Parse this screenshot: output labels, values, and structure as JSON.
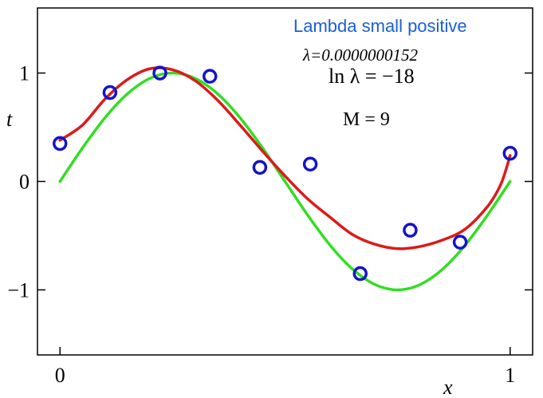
{
  "chart_data": {
    "type": "line",
    "ylabel": "t",
    "xlabel": "x",
    "xlim": [
      -0.05,
      1.05
    ],
    "ylim": [
      -1.6,
      1.6
    ],
    "x_ticks": [
      {
        "value": 0,
        "label": "0"
      },
      {
        "value": 1,
        "label": "1"
      }
    ],
    "y_ticks": [
      {
        "value": 1,
        "label": "1"
      },
      {
        "value": 0,
        "label": "0"
      },
      {
        "value": -1,
        "label": "−1"
      }
    ],
    "annotations": [
      {
        "id": "title",
        "text": "Lambda small positive",
        "color": "#1a5fd6"
      },
      {
        "id": "lambda",
        "text": "λ=0.0000000152"
      },
      {
        "id": "lnlambda",
        "text": "ln λ = −18"
      },
      {
        "id": "m",
        "text": "M = 9"
      }
    ],
    "points": {
      "color": "#1414c8",
      "x": [
        0.0,
        0.111,
        0.222,
        0.333,
        0.444,
        0.556,
        0.667,
        0.778,
        0.889,
        1.0
      ],
      "y": [
        0.35,
        0.82,
        1.0,
        0.97,
        0.13,
        0.16,
        -0.85,
        -0.45,
        -0.56,
        0.26
      ]
    },
    "series": [
      {
        "color": "#33dd22",
        "x": [
          0.0,
          0.05,
          0.1,
          0.15,
          0.2,
          0.25,
          0.3,
          0.35,
          0.4,
          0.45,
          0.5,
          0.55,
          0.6,
          0.65,
          0.7,
          0.75,
          0.8,
          0.85,
          0.9,
          0.95,
          1.0
        ],
        "y": [
          0.0,
          0.309,
          0.588,
          0.809,
          0.951,
          1.0,
          0.951,
          0.809,
          0.588,
          0.309,
          0.0,
          -0.309,
          -0.588,
          -0.809,
          -0.951,
          -1.0,
          -0.951,
          -0.809,
          -0.588,
          -0.309,
          0.0
        ]
      },
      {
        "color": "#dd1a1a",
        "x": [
          0.0,
          0.05,
          0.1,
          0.15,
          0.2,
          0.25,
          0.3,
          0.35,
          0.4,
          0.45,
          0.5,
          0.55,
          0.6,
          0.65,
          0.7,
          0.75,
          0.8,
          0.85,
          0.9,
          0.95,
          0.98,
          1.0
        ],
        "y": [
          0.38,
          0.52,
          0.76,
          0.94,
          1.04,
          1.03,
          0.93,
          0.75,
          0.52,
          0.28,
          0.05,
          -0.16,
          -0.33,
          -0.49,
          -0.58,
          -0.62,
          -0.6,
          -0.54,
          -0.44,
          -0.23,
          -0.02,
          0.24
        ]
      }
    ]
  }
}
